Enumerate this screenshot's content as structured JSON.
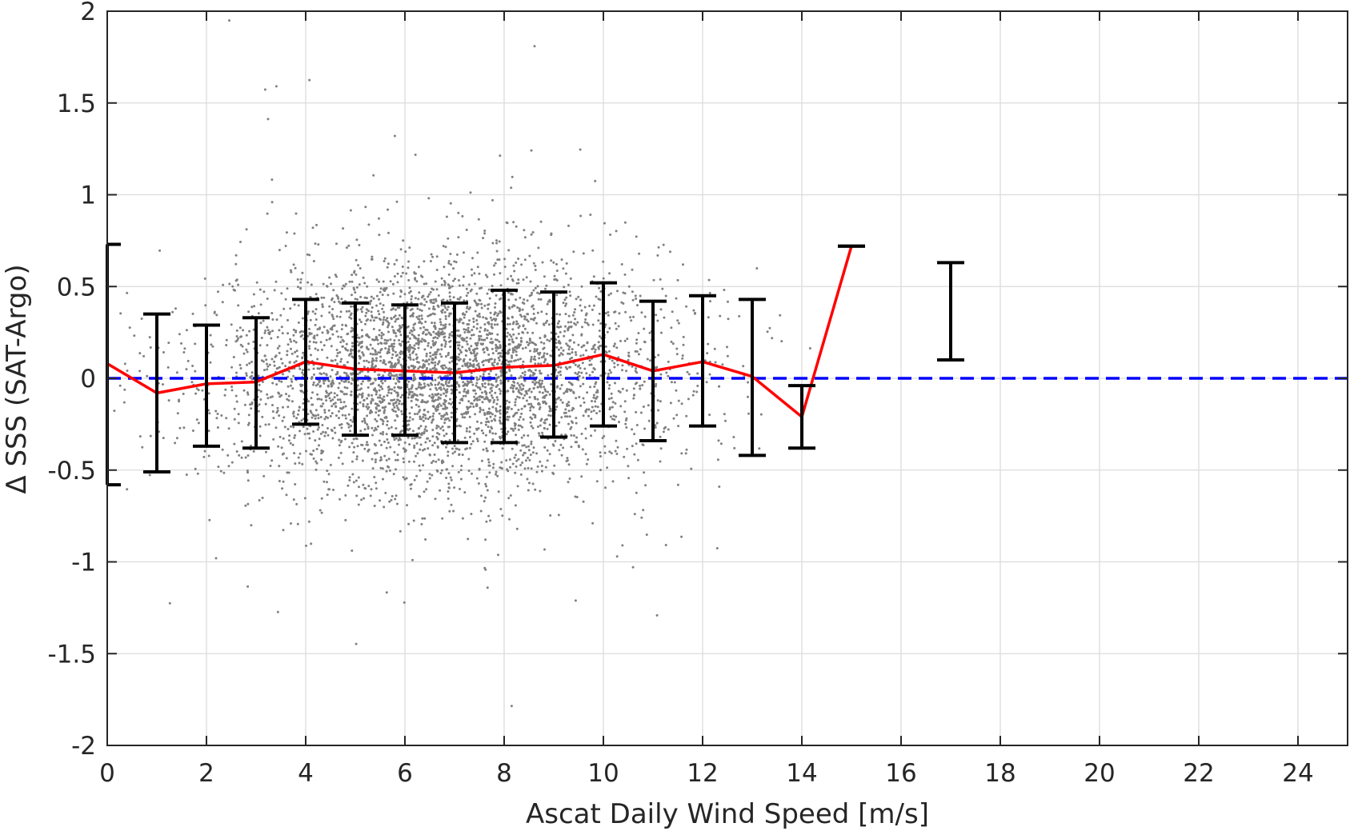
{
  "chart_data": {
    "type": "scatter",
    "xlabel": "Ascat Daily Wind Speed [m/s]",
    "ylabel": "Δ SSS (SAT-Argo)",
    "xlim": [
      0,
      25
    ],
    "ylim": [
      -2,
      2
    ],
    "xticks": [
      0,
      2,
      4,
      6,
      8,
      10,
      12,
      14,
      16,
      18,
      20,
      22,
      24
    ],
    "xtick_labels": [
      "0",
      "2",
      "4",
      "6",
      "8",
      "10",
      "12",
      "14",
      "16",
      "18",
      "20",
      "22",
      "24"
    ],
    "yticks": [
      2,
      1.5,
      1,
      0.5,
      0,
      -0.5,
      -1,
      -1.5,
      -2
    ],
    "ytick_labels": [
      "2",
      "1.5",
      "1",
      "0.5",
      "0",
      "-0.5",
      "-1",
      "-1.5",
      "-2"
    ],
    "grid": true,
    "colors": {
      "scatter": "#808080",
      "mean_line": "#ff0000",
      "zero_line": "#0000ff",
      "error_bars": "#000000",
      "grid": "#dcdcdc",
      "axes": "#262626"
    },
    "zero_reference": {
      "y": 0,
      "style": "dashed"
    },
    "mean_line": {
      "x": [
        0,
        1,
        2,
        3,
        4,
        5,
        6,
        7,
        8,
        9,
        10,
        11,
        12,
        13,
        14,
        15
      ],
      "y": [
        0.08,
        -0.08,
        -0.03,
        -0.02,
        0.09,
        0.05,
        0.04,
        0.03,
        0.06,
        0.07,
        0.13,
        0.04,
        0.09,
        0.01,
        -0.21,
        0.72
      ]
    },
    "error_bars": [
      {
        "x": 0,
        "low": -0.58,
        "high": 0.73
      },
      {
        "x": 1,
        "low": -0.51,
        "high": 0.35
      },
      {
        "x": 2,
        "low": -0.37,
        "high": 0.29
      },
      {
        "x": 3,
        "low": -0.38,
        "high": 0.33
      },
      {
        "x": 4,
        "low": -0.25,
        "high": 0.43
      },
      {
        "x": 5,
        "low": -0.31,
        "high": 0.41
      },
      {
        "x": 6,
        "low": -0.31,
        "high": 0.4
      },
      {
        "x": 7,
        "low": -0.35,
        "high": 0.41
      },
      {
        "x": 8,
        "low": -0.35,
        "high": 0.48
      },
      {
        "x": 9,
        "low": -0.32,
        "high": 0.47
      },
      {
        "x": 10,
        "low": -0.26,
        "high": 0.52
      },
      {
        "x": 11,
        "low": -0.34,
        "high": 0.42
      },
      {
        "x": 12,
        "low": -0.26,
        "high": 0.45
      },
      {
        "x": 13,
        "low": -0.42,
        "high": 0.43
      },
      {
        "x": 14,
        "low": -0.38,
        "high": -0.04
      },
      {
        "x": 15,
        "low": 0.72,
        "high": 0.72
      },
      {
        "x": 17,
        "low": 0.1,
        "high": 0.63
      }
    ],
    "scatter_cloud": {
      "x_center": 6.8,
      "x_spread": 2.3,
      "y_center": 0.03,
      "y_spread": 0.31,
      "x_min": 0.1,
      "x_max": 14.5,
      "count": 4200
    }
  }
}
